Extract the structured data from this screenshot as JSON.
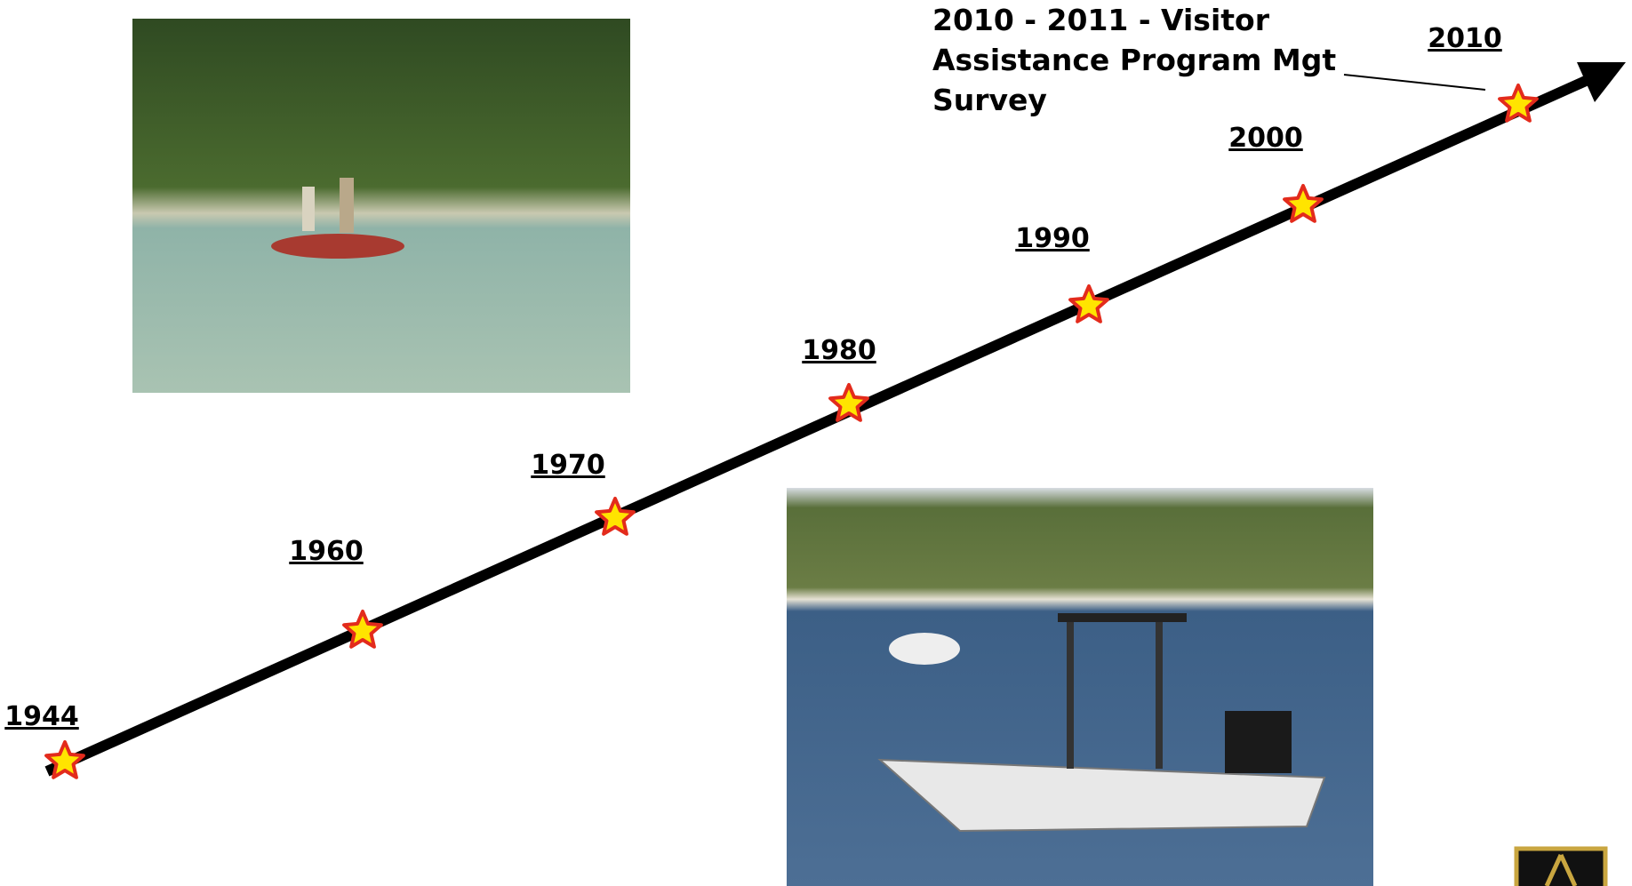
{
  "timeline": {
    "years": [
      "1944",
      "1960",
      "1970",
      "1980",
      "1990",
      "2000",
      "2010"
    ],
    "annotation": [
      "2010 - 2011  - Visitor",
      "Assistance Program Mgt",
      "Survey"
    ]
  }
}
